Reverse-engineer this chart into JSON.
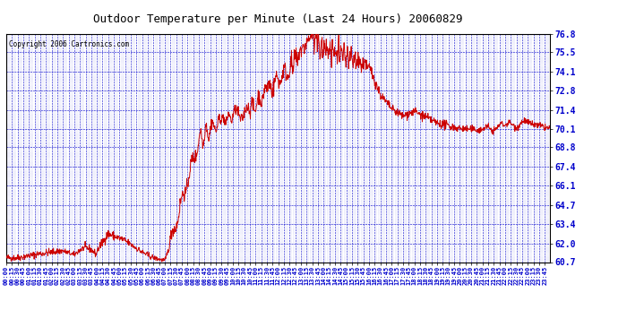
{
  "title": "Outdoor Temperature per Minute (Last 24 Hours) 20060829",
  "copyright": "Copyright 2006 Cartronics.com",
  "line_color": "#cc0000",
  "bg_color": "#ffffff",
  "plot_bg_color": "#ffffff",
  "grid_color": "#0000cc",
  "tick_label_color": "#0000cc",
  "title_color": "#000000",
  "ylim": [
    60.7,
    76.8
  ],
  "yticks": [
    60.7,
    62.0,
    63.4,
    64.7,
    66.1,
    67.4,
    68.8,
    70.1,
    71.4,
    72.8,
    74.1,
    75.5,
    76.8
  ]
}
